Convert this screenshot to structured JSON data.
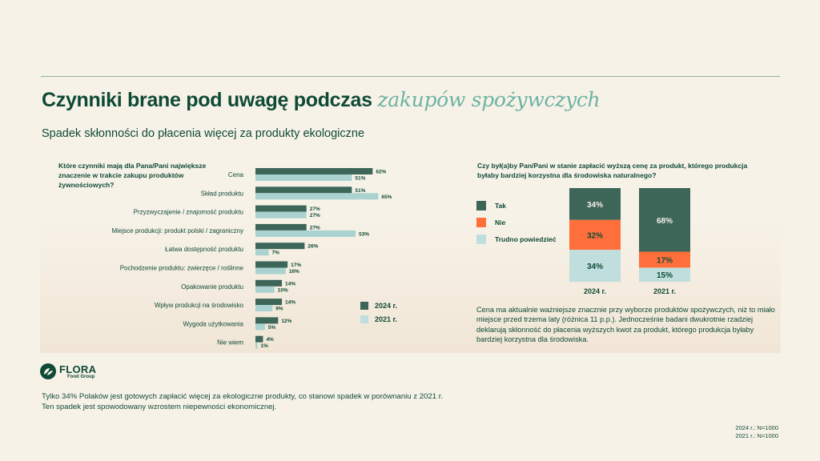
{
  "header": {
    "title_main": "Czynniki brane pod uwagę podczas ",
    "title_accent": "zakupów spożywczych",
    "subtitle": "Spadek skłonności do płacenia więcej za produkty ekologiczne"
  },
  "colors": {
    "dark_green": "#3d6558",
    "light_teal": "#a9d2d0",
    "orange": "#ff6f3c",
    "text": "#0f4a36",
    "accent": "#6db3a3"
  },
  "chart_data": [
    {
      "type": "bar",
      "orientation": "horizontal",
      "title": "Które czynniki mają dla Pana/Pani największe znaczenie w trakcie zakupu produktów żywnościowych?",
      "categories": [
        "Cena",
        "Skład produktu",
        "Przyzwyczajenie / znajomość produktu",
        "Miejsce produkcji: produkt polski / zagraniczny",
        "Łatwa dostępność produktu",
        "Pochodzenie produktu: zwierzęce / roślinne",
        "Opakowanie produktu",
        "Wpływ produkcji na środowisko",
        "Wygoda użytkowania",
        "Nie wiem"
      ],
      "series": [
        {
          "name": "2024 r.",
          "color": "#3d6558",
          "values": [
            62,
            51,
            27,
            27,
            26,
            17,
            14,
            14,
            12,
            4
          ]
        },
        {
          "name": "2021 r.",
          "color": "#a9d2d0",
          "values": [
            51,
            65,
            27,
            53,
            7,
            16,
            10,
            9,
            5,
            1
          ]
        }
      ],
      "value_suffix": "%",
      "xlim": [
        0,
        100
      ],
      "grid": false,
      "legend": "bottom-right"
    },
    {
      "type": "bar",
      "orientation": "vertical",
      "stacked": true,
      "title": "Czy był(a)by Pan/Pani w stanie zapłacić wyższą cenę za produkt, którego produkcja byłaby bardziej korzystna dla środowiska naturalnego?",
      "categories": [
        "2024 r.",
        "2021 r."
      ],
      "series": [
        {
          "name": "Tak",
          "color": "#3d6558",
          "label_color": "#f7f2e8",
          "values": [
            34,
            68
          ]
        },
        {
          "name": "Nie",
          "color": "#ff6f3c",
          "label_color": "#0f4a36",
          "values": [
            32,
            17
          ]
        },
        {
          "name": "Trudno powiedzieć",
          "color": "#bfdedd",
          "label_color": "#0f4a36",
          "values": [
            34,
            15
          ]
        }
      ],
      "value_suffix": "%",
      "ylim": [
        0,
        100
      ],
      "grid": false,
      "legend": "left"
    }
  ],
  "note": "Cena ma aktualnie ważniejsze znacznie przy wyborze produktów spożywczych, niż to miało miejsce przed trzema laty (różnica 11 p.p.). Jednocześnie badani dwukrotnie rzadziej deklarują skłonność do płacenia wyższych kwot za produkt, którego produkcja byłaby bardziej korzystna dla środowiska.",
  "logo": {
    "brand": "FLORA",
    "sub": "Food Group",
    "icon": "leaf-logo-icon"
  },
  "footer": {
    "line1": "Tylko 34% Polaków jest gotowych zapłacić więcej za ekologiczne produkty, co stanowi spadek w porównaniu z 2021 r.",
    "line2": "Ten spadek jest spowodowany wzrostem niepewności ekonomicznej."
  },
  "sample": {
    "line1": "2024 r.: N=1000",
    "line2": "2021 r.: N=1000"
  }
}
